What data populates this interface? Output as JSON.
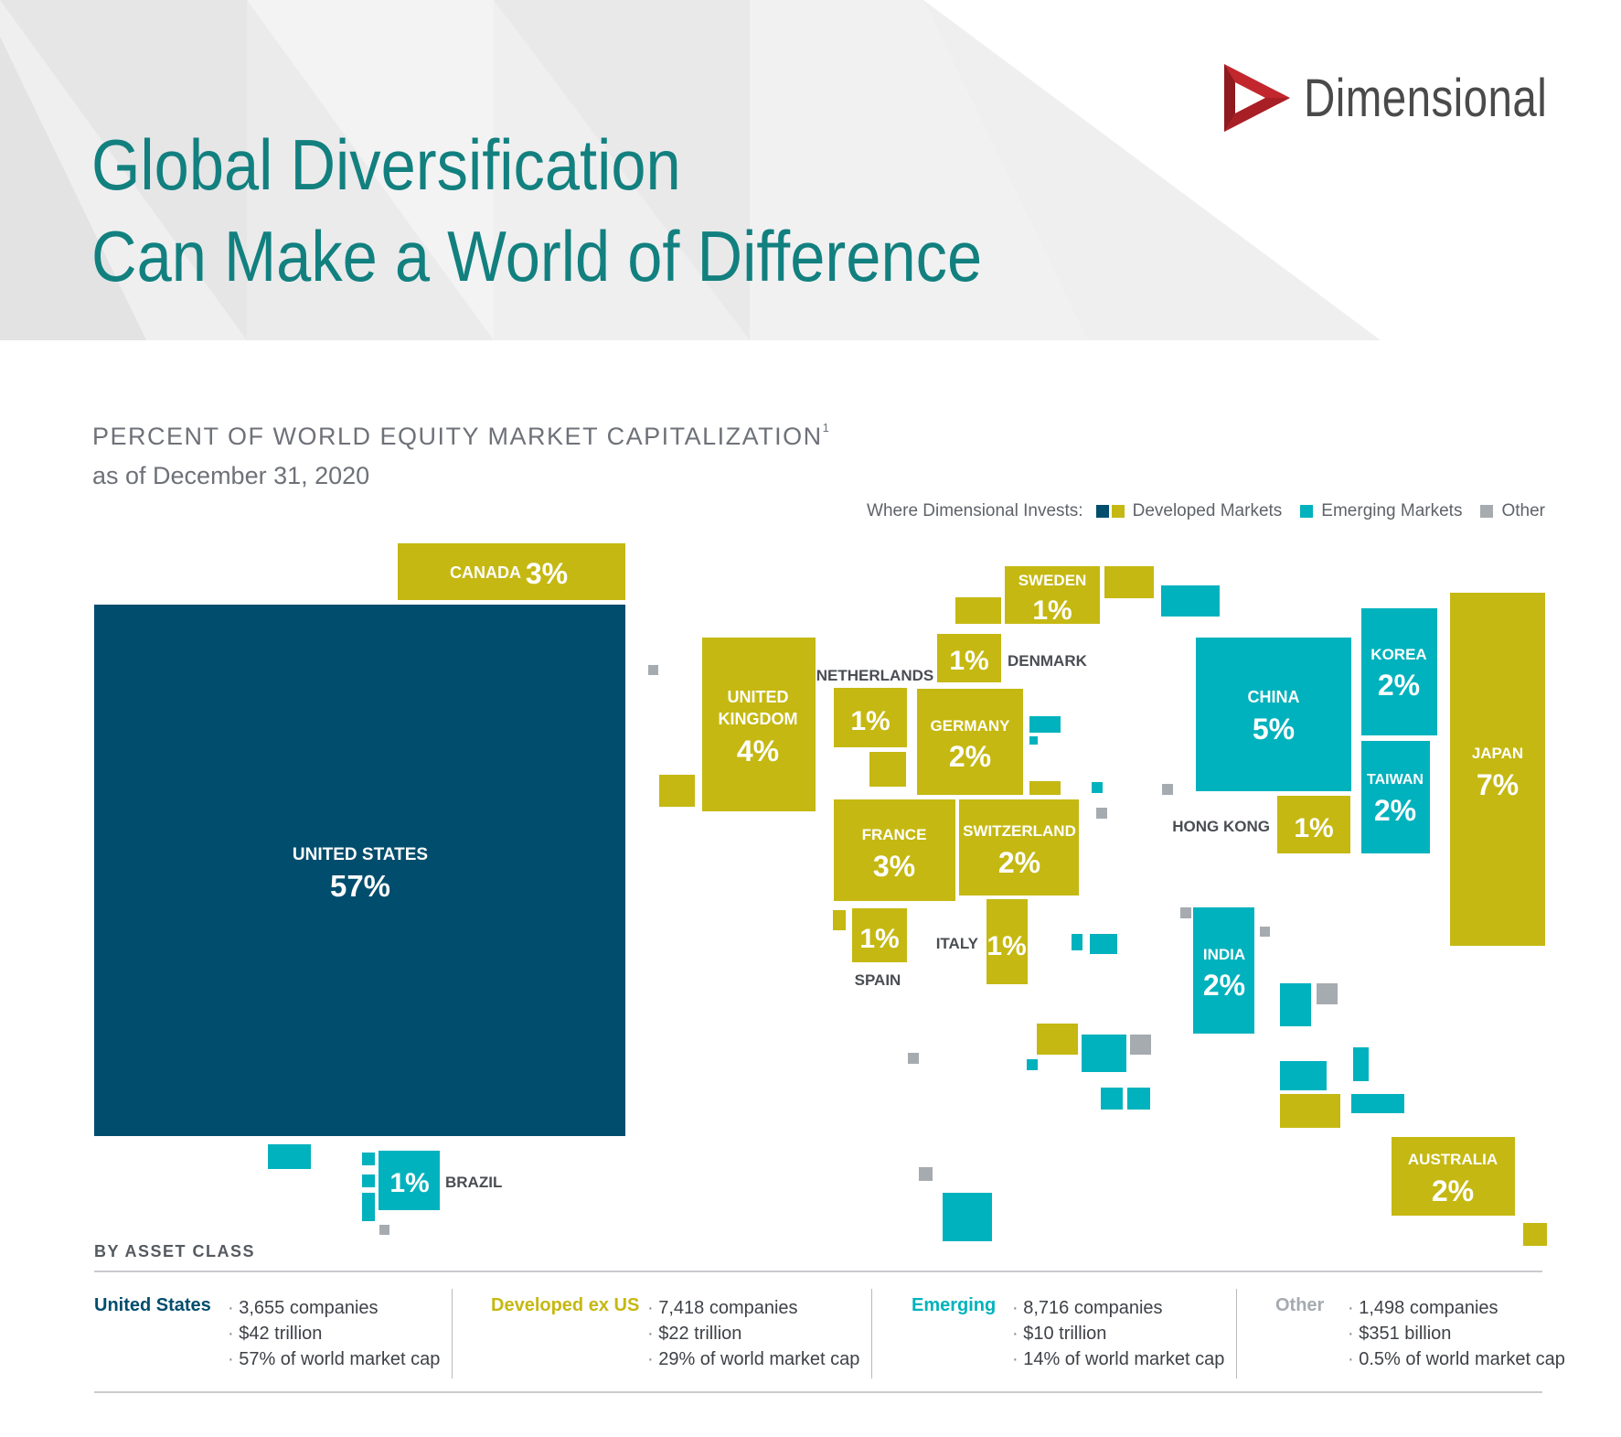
{
  "header": {
    "title_line1": "Global Diversification",
    "title_line2": "Can Make a World of Difference",
    "logo_text": "Dimensional",
    "subtitle": "PERCENT OF WORLD EQUITY MARKET CAPITALIZATION",
    "subtitle_footnote": "1",
    "as_of": "as of December 31, 2020"
  },
  "legend": {
    "prefix": "Where Dimensional Invests:",
    "items": [
      {
        "label": "Developed Markets",
        "colors": [
          "#004d6d",
          "#c5b812"
        ]
      },
      {
        "label": "Emerging Markets",
        "colors": [
          "#00b2bd"
        ]
      },
      {
        "label": "Other",
        "colors": [
          "#a6abb0"
        ]
      }
    ]
  },
  "colors": {
    "us": "#004d6d",
    "developed": "#c5b812",
    "emerging": "#00b2bd",
    "other": "#a6abb0",
    "title_teal": "#12807f",
    "logo_red": "#c1272d"
  },
  "chart_data": {
    "type": "treemap-map",
    "title": "PERCENT OF WORLD EQUITY MARKET CAPITALIZATION",
    "subtitle": "as of December 31, 2020",
    "unit": "percent of world equity market capitalization",
    "countries": [
      {
        "name": "UNITED STATES",
        "value": 57,
        "label": "57%",
        "class": "us"
      },
      {
        "name": "JAPAN",
        "value": 7,
        "label": "7%",
        "class": "developed"
      },
      {
        "name": "CHINA",
        "value": 5,
        "label": "5%",
        "class": "emerging"
      },
      {
        "name": "UNITED KINGDOM",
        "value": 4,
        "label": "4%",
        "class": "developed"
      },
      {
        "name": "CANADA",
        "value": 3,
        "label": "3%",
        "class": "developed"
      },
      {
        "name": "FRANCE",
        "value": 3,
        "label": "3%",
        "class": "developed"
      },
      {
        "name": "SWITZERLAND",
        "value": 2,
        "label": "2%",
        "class": "developed"
      },
      {
        "name": "GERMANY",
        "value": 2,
        "label": "2%",
        "class": "developed"
      },
      {
        "name": "AUSTRALIA",
        "value": 2,
        "label": "2%",
        "class": "developed"
      },
      {
        "name": "KOREA",
        "value": 2,
        "label": "2%",
        "class": "emerging"
      },
      {
        "name": "TAIWAN",
        "value": 2,
        "label": "2%",
        "class": "emerging"
      },
      {
        "name": "INDIA",
        "value": 2,
        "label": "2%",
        "class": "emerging"
      },
      {
        "name": "NETHERLANDS",
        "value": 1,
        "label": "1%",
        "class": "developed"
      },
      {
        "name": "SWEDEN",
        "value": 1,
        "label": "1%",
        "class": "developed"
      },
      {
        "name": "DENMARK",
        "value": 1,
        "label": "1%",
        "class": "developed"
      },
      {
        "name": "HONG KONG",
        "value": 1,
        "label": "1%",
        "class": "developed"
      },
      {
        "name": "SPAIN",
        "value": 1,
        "label": "1%",
        "class": "developed"
      },
      {
        "name": "ITALY",
        "value": 1,
        "label": "1%",
        "class": "developed"
      },
      {
        "name": "BRAZIL",
        "value": 1,
        "label": "1%",
        "class": "emerging"
      }
    ]
  },
  "asset_classes": {
    "heading": "BY ASSET CLASS",
    "items": [
      {
        "name": "United States",
        "color": "#004d6d",
        "stats": [
          "3,655 companies",
          "$42 trillion",
          "57% of world market cap"
        ]
      },
      {
        "name": "Developed ex US",
        "color": "#c5b812",
        "stats": [
          "7,418 companies",
          "$22 trillion",
          "29% of world market cap"
        ]
      },
      {
        "name": "Emerging",
        "color": "#00b2bd",
        "stats": [
          "8,716 companies",
          "$10 trillion",
          "14% of world market cap"
        ]
      },
      {
        "name": "Other",
        "color": "#a6abb0",
        "stats": [
          "1,498 companies",
          "$351 billion",
          "0.5% of world market cap"
        ]
      }
    ]
  }
}
